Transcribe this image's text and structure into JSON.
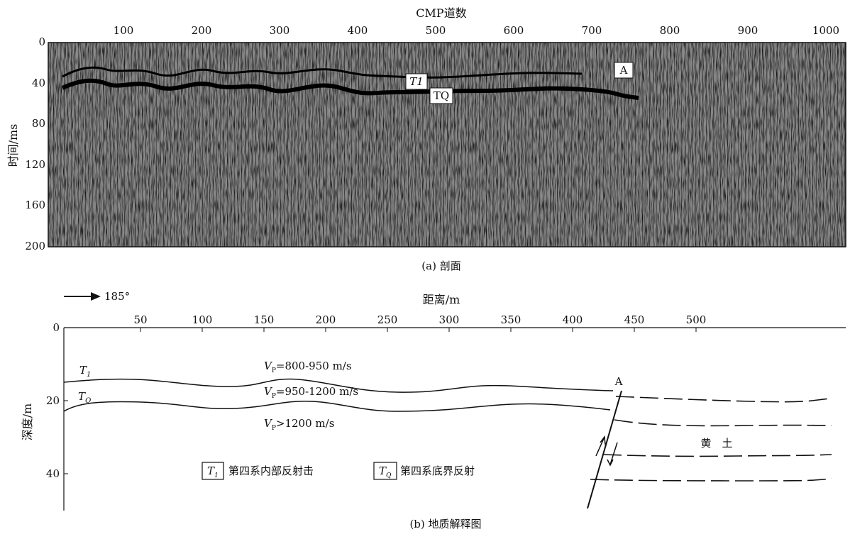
{
  "section": {
    "x_axis_title": "CMP道数",
    "x_ticks": [
      "100",
      "200",
      "300",
      "400",
      "500",
      "600",
      "700",
      "800",
      "900",
      "1000"
    ],
    "y_axis_title": "时间/ms",
    "y_ticks": [
      "0",
      "40",
      "80",
      "120",
      "160",
      "200"
    ],
    "horizon_labels": {
      "t1": "T1",
      "tq": "TQ",
      "fault": "A"
    },
    "caption": "(a) 剖面"
  },
  "interp": {
    "direction": "185°",
    "x_axis_title": "距离/m",
    "x_ticks": [
      "50",
      "100",
      "150",
      "200",
      "250",
      "300",
      "350",
      "400",
      "450",
      "500"
    ],
    "y_axis_title": "深度/m",
    "y_ticks": [
      "0",
      "20",
      "40"
    ],
    "labels": {
      "t1": "T",
      "t1_sub": "1",
      "tq": "T",
      "tq_sub": "Q",
      "fault": "A",
      "loess": "黄　土"
    },
    "velocities": [
      {
        "v": "V",
        "sub": "P",
        "text": "=800-950 m/s"
      },
      {
        "v": "V",
        "sub": "P",
        "text": "=950-1200 m/s"
      },
      {
        "v": "V",
        "sub": "P",
        "text": ">1200 m/s"
      }
    ],
    "legend": [
      {
        "sym": "T",
        "sub": "1",
        "text": "第四系内部反射击"
      },
      {
        "sym": "T",
        "sub": "Q",
        "text": "第四系底界反射"
      }
    ],
    "caption": "(b) 地质解释图"
  }
}
